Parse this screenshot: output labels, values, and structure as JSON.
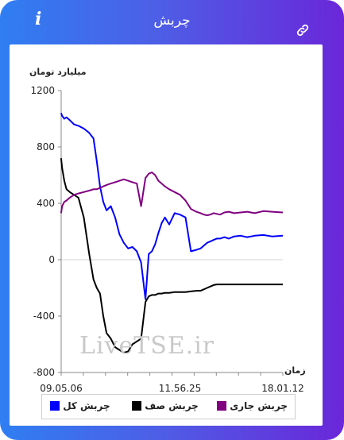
{
  "header": {
    "title": "چربش",
    "info_icon": "info-icon",
    "link_icon": "link-icon"
  },
  "watermark": "LiveTSE.ir",
  "chart_data": {
    "type": "line",
    "ylabel": "میلیارد تومان",
    "xlabel": "زمان",
    "ylim": [
      -800,
      1200
    ],
    "yticks": [
      -800,
      -400,
      0,
      400,
      800,
      1200
    ],
    "xlim": [
      "09:05:06",
      "12:30:00"
    ],
    "xtick_labels": [
      "09.05.06",
      "11.56.25",
      "18.01.12"
    ],
    "grid": "horizontal zero line only",
    "legend_position": "bottom",
    "series": [
      {
        "name": "چربش کل",
        "color": "#0000ff",
        "x": [
          "09:05",
          "09:06",
          "09:08",
          "09:10",
          "09:13",
          "09:17",
          "09:21",
          "09:26",
          "09:31",
          "09:35",
          "09:38",
          "09:41",
          "09:44",
          "09:47",
          "09:51",
          "09:55",
          "09:59",
          "10:03",
          "10:07",
          "10:11",
          "10:15",
          "10:19",
          "10:23",
          "10:26",
          "10:29",
          "10:32",
          "10:35",
          "10:38",
          "10:41",
          "10:45",
          "10:50",
          "10:55",
          "11:00",
          "11:05",
          "11:10",
          "11:14",
          "11:17",
          "11:20",
          "11:23",
          "11:26",
          "11:29",
          "11:32",
          "11:36",
          "11:40",
          "11:45",
          "11:51",
          "11:57",
          "12:04",
          "12:12",
          "12:20",
          "12:30"
        ],
        "y": [
          1040,
          1020,
          1000,
          1010,
          990,
          960,
          950,
          930,
          900,
          860,
          700,
          520,
          410,
          350,
          380,
          300,
          180,
          120,
          80,
          90,
          60,
          -20,
          -280,
          40,
          60,
          110,
          190,
          260,
          300,
          250,
          330,
          320,
          300,
          60,
          70,
          80,
          100,
          120,
          130,
          140,
          150,
          150,
          160,
          150,
          165,
          170,
          160,
          170,
          175,
          165,
          170
        ]
      },
      {
        "name": "چربش صف",
        "color": "#000000",
        "x": [
          "09:05",
          "09:06",
          "09:08",
          "09:10",
          "09:13",
          "09:17",
          "09:21",
          "09:26",
          "09:31",
          "09:35",
          "09:38",
          "09:41",
          "09:44",
          "09:47",
          "09:51",
          "09:55",
          "09:59",
          "10:03",
          "10:07",
          "10:11",
          "10:15",
          "10:19",
          "10:23",
          "10:26",
          "10:29",
          "10:32",
          "10:35",
          "10:38",
          "10:41",
          "10:45",
          "10:50",
          "10:55",
          "11:00",
          "11:05",
          "11:10",
          "11:14",
          "11:17",
          "11:20",
          "11:23",
          "11:26",
          "11:29",
          "11:32",
          "11:36",
          "11:40",
          "11:45",
          "11:51",
          "11:57",
          "12:04",
          "12:12",
          "12:20",
          "12:30"
        ],
        "y": [
          720,
          650,
          560,
          500,
          480,
          460,
          440,
          300,
          40,
          -140,
          -200,
          -240,
          -400,
          -520,
          -560,
          -620,
          -640,
          -660,
          -650,
          -600,
          -580,
          -560,
          -300,
          -260,
          -250,
          -250,
          -240,
          -240,
          -235,
          -235,
          -230,
          -230,
          -230,
          -225,
          -220,
          -220,
          -210,
          -200,
          -190,
          -180,
          -175,
          -175,
          -175,
          -175,
          -175,
          -175,
          -175,
          -175,
          -175,
          -175,
          -175
        ]
      },
      {
        "name": "چربش جاری",
        "color": "#800080",
        "x": [
          "09:05",
          "09:06",
          "09:08",
          "09:10",
          "09:13",
          "09:17",
          "09:21",
          "09:26",
          "09:31",
          "09:35",
          "09:38",
          "09:41",
          "09:44",
          "09:47",
          "09:51",
          "09:55",
          "09:59",
          "10:03",
          "10:07",
          "10:11",
          "10:15",
          "10:19",
          "10:23",
          "10:26",
          "10:29",
          "10:32",
          "10:35",
          "10:38",
          "10:41",
          "10:45",
          "10:50",
          "10:55",
          "11:00",
          "11:05",
          "11:10",
          "11:14",
          "11:17",
          "11:20",
          "11:23",
          "11:26",
          "11:29",
          "11:32",
          "11:36",
          "11:40",
          "11:45",
          "11:51",
          "11:57",
          "12:04",
          "12:12",
          "12:20",
          "12:30"
        ],
        "y": [
          330,
          380,
          410,
          420,
          440,
          460,
          470,
          480,
          490,
          500,
          500,
          510,
          520,
          530,
          540,
          550,
          560,
          570,
          560,
          550,
          540,
          380,
          580,
          610,
          620,
          600,
          560,
          540,
          520,
          500,
          480,
          460,
          420,
          360,
          340,
          330,
          320,
          315,
          320,
          330,
          325,
          320,
          335,
          340,
          330,
          335,
          340,
          330,
          345,
          340,
          335
        ]
      }
    ]
  },
  "legend": [
    {
      "label": "چربش کل",
      "color": "#0000ff"
    },
    {
      "label": "چربش صف",
      "color": "#000000"
    },
    {
      "label": "چربش جاری",
      "color": "#800080"
    }
  ]
}
